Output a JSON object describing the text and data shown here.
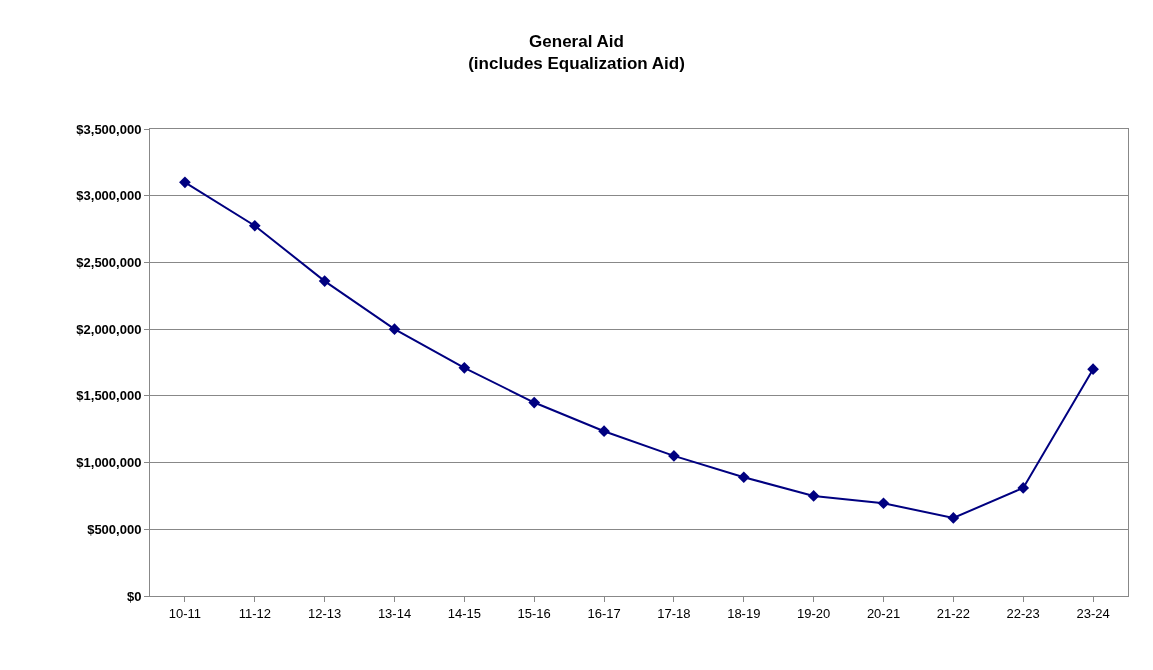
{
  "chart_data": {
    "type": "line",
    "title": "General Aid\n(includes Equalization Aid)",
    "categories": [
      "10-11",
      "11-12",
      "12-13",
      "13-14",
      "14-15",
      "15-16",
      "16-17",
      "17-18",
      "18-19",
      "19-20",
      "20-21",
      "21-22",
      "22-23",
      "23-24"
    ],
    "series": [
      {
        "color": "#000080",
        "values": [
          3100000,
          2775000,
          2360000,
          2000000,
          1710000,
          1450000,
          1235000,
          1050000,
          890000,
          750000,
          695000,
          585000,
          810000,
          1700000
        ]
      }
    ],
    "ylim": [
      0,
      3500000
    ],
    "yticks": [
      {
        "value": 0,
        "label": "$0"
      },
      {
        "value": 500000,
        "label": "$500,000"
      },
      {
        "value": 1000000,
        "label": "$1,000,000"
      },
      {
        "value": 1500000,
        "label": "$1,500,000"
      },
      {
        "value": 2000000,
        "label": "$2,000,000"
      },
      {
        "value": 2500000,
        "label": "$2,500,000"
      },
      {
        "value": 3000000,
        "label": "$3,000,000"
      },
      {
        "value": 3500000,
        "label": "$3,500,000"
      }
    ],
    "grid": "y",
    "marker": "diamond",
    "line_style": "solid",
    "legend": false
  }
}
